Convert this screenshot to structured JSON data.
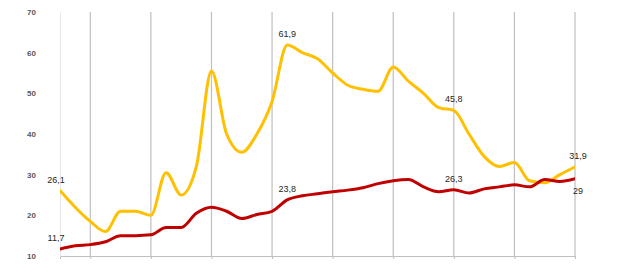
{
  "chart_data": {
    "type": "line",
    "x": [
      0,
      0.5,
      1,
      1.5,
      2,
      2.5,
      3,
      3.5,
      4,
      4.5,
      5,
      5.5,
      6,
      6.5,
      7,
      7.5,
      8,
      8.5,
      9,
      9.5,
      10,
      10.5,
      11,
      11.5,
      12,
      12.5,
      13,
      13.5,
      14,
      14.5,
      15,
      15.5,
      16,
      16.5,
      17
    ],
    "series": [
      {
        "color": "#ffc000",
        "values": [
          26.1,
          22,
          18.5,
          16,
          21,
          21,
          20,
          30.5,
          25,
          32,
          55.5,
          40,
          35.5,
          40,
          48,
          61.9,
          60,
          58.5,
          55,
          52,
          51,
          50.5,
          56.5,
          53,
          50,
          46.5,
          45.8,
          40,
          34.5,
          32,
          33,
          28.5,
          28,
          30,
          31.9
        ],
        "value_labels": [
          "26,1",
          null,
          null,
          null,
          null,
          null,
          null,
          null,
          null,
          null,
          null,
          null,
          null,
          null,
          null,
          "61,9",
          null,
          null,
          null,
          null,
          null,
          null,
          null,
          null,
          null,
          null,
          "45,8",
          null,
          null,
          null,
          null,
          null,
          null,
          null,
          "31,9"
        ]
      },
      {
        "color": "#c00000",
        "values": [
          11.7,
          12.5,
          12.8,
          13.5,
          15,
          15,
          15.2,
          17,
          17,
          20.5,
          22,
          21,
          19.2,
          20.2,
          21,
          23.8,
          24.8,
          25.3,
          25.8,
          26.2,
          26.8,
          27.8,
          28.5,
          28.8,
          27,
          25.8,
          26.3,
          25.5,
          26.5,
          27,
          27.5,
          27,
          28.8,
          28.3,
          29
        ],
        "value_labels": [
          "11,7",
          null,
          null,
          null,
          null,
          null,
          null,
          null,
          null,
          null,
          null,
          null,
          null,
          null,
          null,
          "23,8",
          null,
          null,
          null,
          null,
          null,
          null,
          null,
          null,
          null,
          null,
          "26,3",
          null,
          null,
          null,
          null,
          null,
          null,
          null,
          "29"
        ]
      }
    ],
    "xlim": [
      0,
      17
    ],
    "xticks": [
      1,
      3,
      5,
      7,
      9,
      11,
      13,
      15,
      17
    ],
    "ylim": [
      10,
      70
    ],
    "yticks": [
      10,
      20,
      30,
      40,
      50,
      60,
      70
    ],
    "grid": "x",
    "tick_labels": "y",
    "data_labels": true
  }
}
